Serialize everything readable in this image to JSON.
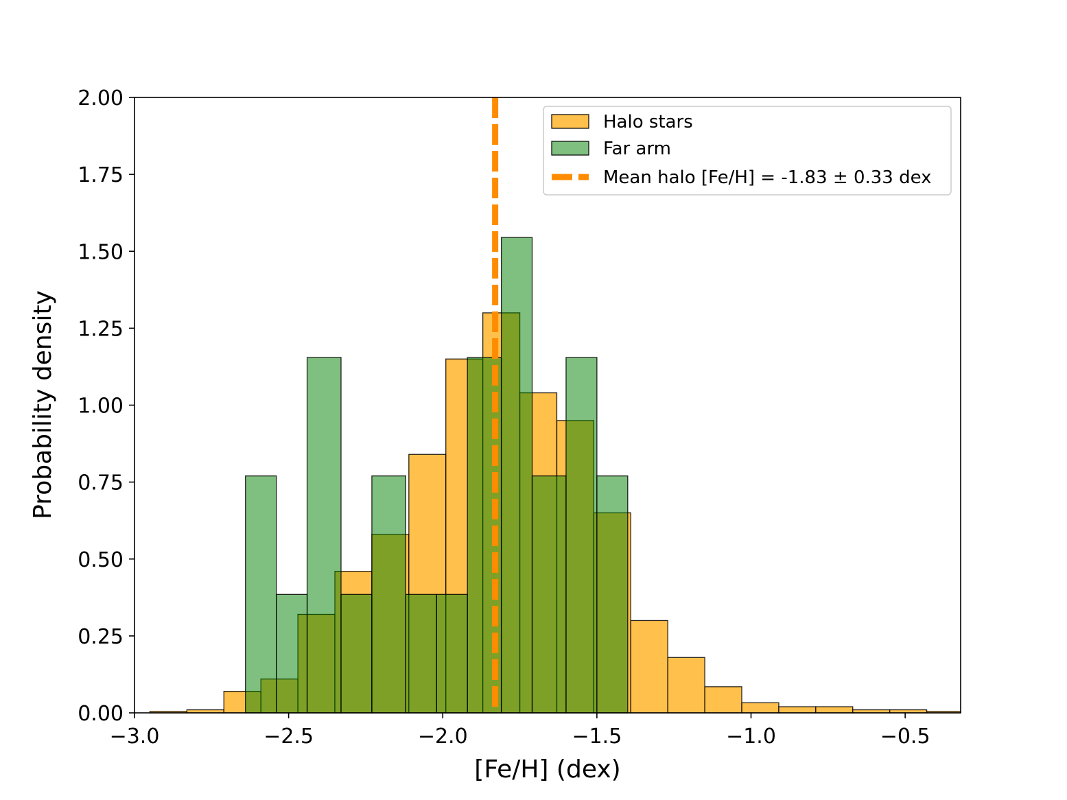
{
  "chart_data": {
    "type": "histogram",
    "xlabel": "[Fe/H] (dex)",
    "ylabel": "Probability density",
    "xlim": [
      -3.0,
      -0.32
    ],
    "ylim": [
      0.0,
      2.0
    ],
    "xticks": [
      -3.0,
      -2.5,
      -2.0,
      -1.5,
      -1.0,
      -0.5
    ],
    "xtick_labels": [
      "−3.0",
      "−2.5",
      "−2.0",
      "−1.5",
      "−1.0",
      "−0.5"
    ],
    "yticks": [
      0.0,
      0.25,
      0.5,
      0.75,
      1.0,
      1.25,
      1.5,
      1.75,
      2.0
    ],
    "ytick_labels": [
      "0.00",
      "0.25",
      "0.50",
      "0.75",
      "1.00",
      "1.25",
      "1.50",
      "1.75",
      "2.00"
    ],
    "legend_position": "top-right",
    "series": [
      {
        "name": "Halo stars",
        "color": "#ffa500",
        "opacity": 0.7,
        "bins": [
          {
            "x0": -2.95,
            "x1": -2.83,
            "value": 0.005
          },
          {
            "x0": -2.83,
            "x1": -2.71,
            "value": 0.01
          },
          {
            "x0": -2.71,
            "x1": -2.59,
            "value": 0.07
          },
          {
            "x0": -2.59,
            "x1": -2.47,
            "value": 0.11
          },
          {
            "x0": -2.47,
            "x1": -2.35,
            "value": 0.32
          },
          {
            "x0": -2.35,
            "x1": -2.23,
            "value": 0.46
          },
          {
            "x0": -2.23,
            "x1": -2.11,
            "value": 0.58
          },
          {
            "x0": -2.11,
            "x1": -1.99,
            "value": 0.84
          },
          {
            "x0": -1.99,
            "x1": -1.87,
            "value": 1.15
          },
          {
            "x0": -1.87,
            "x1": -1.75,
            "value": 1.3
          },
          {
            "x0": -1.75,
            "x1": -1.63,
            "value": 1.04
          },
          {
            "x0": -1.63,
            "x1": -1.51,
            "value": 0.95
          },
          {
            "x0": -1.51,
            "x1": -1.39,
            "value": 0.65
          },
          {
            "x0": -1.39,
            "x1": -1.27,
            "value": 0.3
          },
          {
            "x0": -1.27,
            "x1": -1.15,
            "value": 0.18
          },
          {
            "x0": -1.15,
            "x1": -1.03,
            "value": 0.085
          },
          {
            "x0": -1.03,
            "x1": -0.91,
            "value": 0.033
          },
          {
            "x0": -0.91,
            "x1": -0.79,
            "value": 0.02
          },
          {
            "x0": -0.79,
            "x1": -0.67,
            "value": 0.02
          },
          {
            "x0": -0.67,
            "x1": -0.55,
            "value": 0.01
          },
          {
            "x0": -0.55,
            "x1": -0.43,
            "value": 0.01
          },
          {
            "x0": -0.43,
            "x1": -0.32,
            "value": 0.005
          }
        ]
      },
      {
        "name": "Far arm",
        "color": "#008000",
        "opacity": 0.5,
        "bins": [
          {
            "x0": -2.64,
            "x1": -2.54,
            "value": 0.77
          },
          {
            "x0": -2.54,
            "x1": -2.44,
            "value": 0.385
          },
          {
            "x0": -2.44,
            "x1": -2.33,
            "value": 1.155
          },
          {
            "x0": -2.33,
            "x1": -2.23,
            "value": 0.385
          },
          {
            "x0": -2.23,
            "x1": -2.12,
            "value": 0.77
          },
          {
            "x0": -2.12,
            "x1": -2.02,
            "value": 0.385
          },
          {
            "x0": -2.02,
            "x1": -1.92,
            "value": 0.385
          },
          {
            "x0": -1.92,
            "x1": -1.81,
            "value": 1.155
          },
          {
            "x0": -1.81,
            "x1": -1.71,
            "value": 1.545
          },
          {
            "x0": -1.71,
            "x1": -1.6,
            "value": 0.77
          },
          {
            "x0": -1.6,
            "x1": -1.5,
            "value": 1.155
          },
          {
            "x0": -1.5,
            "x1": -1.4,
            "value": 0.77
          }
        ]
      }
    ],
    "mean_line": {
      "label": "Mean halo [Fe/H] = -1.83 ± 0.33 dex",
      "x": -1.83,
      "color": "#ff8c00"
    }
  }
}
